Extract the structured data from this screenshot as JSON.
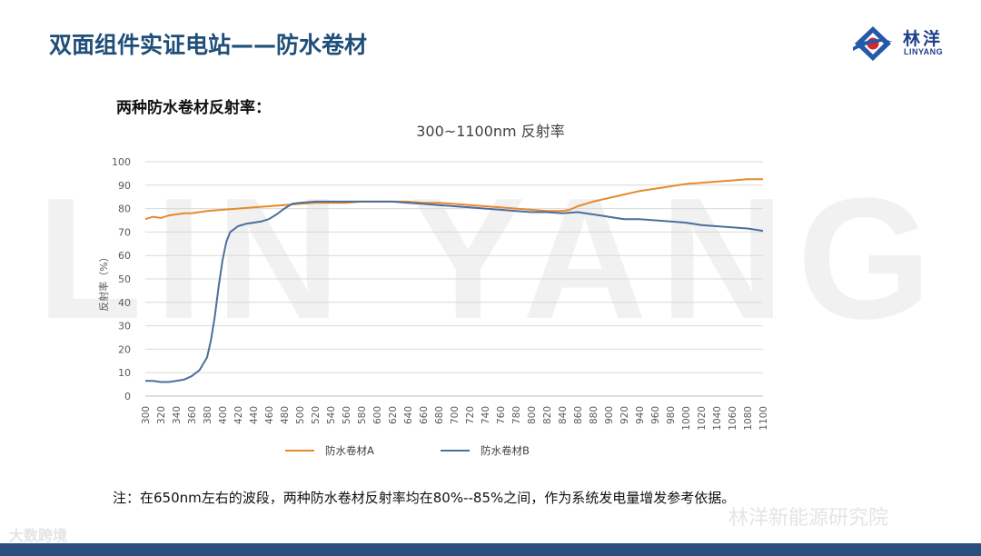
{
  "slide": {
    "title": "双面组件实证电站——防水卷材",
    "subtitle": "两种防水卷材反射率：",
    "note": "注：在650nm左右的波段，两种防水卷材反射率均在80%--85%之间，作为系统发电量增发参考依据。",
    "background_watermark": "LIN YANG",
    "logo": {
      "cn": "林洋",
      "en": "LINYANG",
      "mark_icon": "linyang-logo-icon"
    },
    "wechat_watermark": "林洋新能源研究院",
    "brand_watermark": "大数跨境",
    "colors": {
      "title": "#1f4e79",
      "bottom_bar": "#2b4f7e",
      "series_a": "#e58a2e",
      "series_b": "#4c6e9c"
    }
  },
  "chart_data": {
    "type": "line",
    "title": "300~1100nm 反射率",
    "xlabel": "",
    "ylabel": "反射率（%）",
    "ylim": [
      0,
      100
    ],
    "yticks": [
      0,
      10,
      20,
      30,
      40,
      50,
      60,
      70,
      80,
      90,
      100
    ],
    "xlim": [
      300,
      1100
    ],
    "xticks": [
      300,
      320,
      340,
      360,
      380,
      400,
      420,
      440,
      460,
      480,
      500,
      520,
      540,
      560,
      580,
      600,
      620,
      640,
      660,
      680,
      700,
      720,
      740,
      760,
      780,
      800,
      820,
      840,
      860,
      880,
      900,
      920,
      940,
      960,
      980,
      1000,
      1020,
      1040,
      1060,
      1080,
      1100
    ],
    "grid": "horizontal",
    "legend_position": "bottom",
    "series": [
      {
        "name": "防水卷材A",
        "color": "#e58a2e",
        "x": [
          300,
          310,
          320,
          330,
          340,
          350,
          360,
          380,
          400,
          420,
          440,
          460,
          480,
          500,
          520,
          540,
          560,
          580,
          600,
          620,
          640,
          660,
          680,
          700,
          720,
          740,
          760,
          780,
          800,
          820,
          840,
          850,
          860,
          880,
          900,
          920,
          940,
          960,
          980,
          1000,
          1020,
          1040,
          1060,
          1080,
          1100
        ],
        "y": [
          75.5,
          76.5,
          76,
          77,
          77.5,
          78,
          78,
          79,
          79.5,
          80,
          80.5,
          81,
          81.5,
          82,
          82.5,
          82.5,
          82.5,
          83,
          83,
          83,
          83,
          82.5,
          82.5,
          82,
          81.5,
          81,
          80.5,
          80,
          79.5,
          79,
          79,
          79.5,
          81,
          83,
          84.5,
          86,
          87.5,
          88.5,
          89.5,
          90.5,
          91,
          91.5,
          92,
          92.5,
          92.5
        ]
      },
      {
        "name": "防水卷材B",
        "color": "#4c6e9c",
        "x": [
          300,
          310,
          320,
          330,
          340,
          350,
          360,
          370,
          380,
          385,
          390,
          395,
          400,
          405,
          410,
          420,
          430,
          440,
          450,
          460,
          470,
          480,
          490,
          500,
          520,
          540,
          560,
          580,
          600,
          620,
          640,
          660,
          680,
          700,
          720,
          740,
          760,
          780,
          800,
          820,
          840,
          860,
          870,
          880,
          890,
          900,
          920,
          940,
          960,
          980,
          1000,
          1020,
          1040,
          1060,
          1080,
          1100
        ],
        "y": [
          6.5,
          6.5,
          6,
          6,
          6.5,
          7,
          8.5,
          11,
          16.5,
          24,
          34,
          47,
          58,
          66,
          70,
          72.5,
          73.5,
          74,
          74.5,
          75.5,
          77.5,
          80,
          82,
          82.5,
          83,
          83,
          83,
          83,
          83,
          83,
          82.5,
          82,
          81.5,
          81,
          80.5,
          80,
          79.5,
          79,
          78.5,
          78.5,
          78,
          78.5,
          78,
          77.5,
          77,
          76.5,
          75.5,
          75.5,
          75,
          74.5,
          74,
          73,
          72.5,
          72,
          71.5,
          70.5
        ]
      }
    ]
  }
}
